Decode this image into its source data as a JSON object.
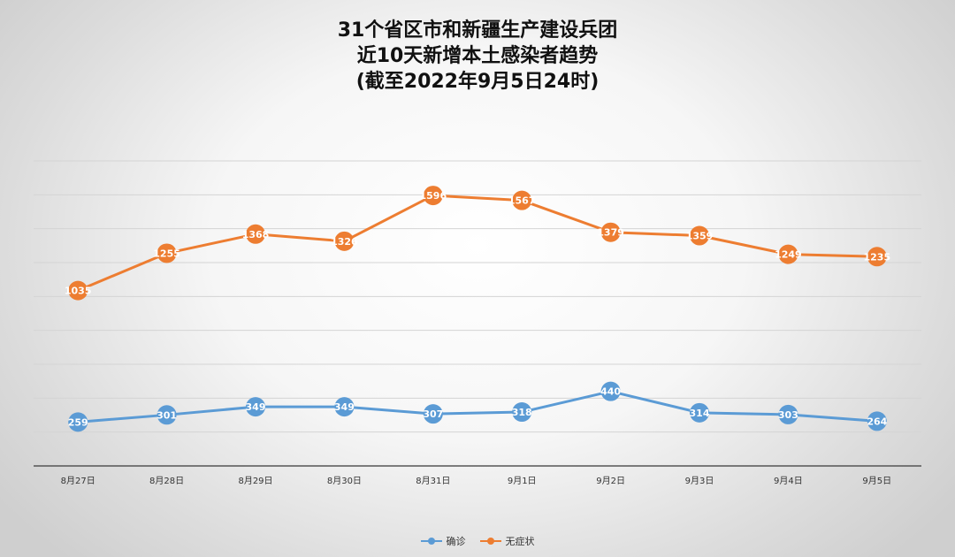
{
  "chart_data": {
    "type": "line",
    "title_lines": [
      "31个省区市和新疆生产建设兵团",
      "近10天新增本土感染者趋势",
      "(截至2022年9月5日24时)"
    ],
    "categories": [
      "8月27日",
      "8月28日",
      "8月29日",
      "8月30日",
      "8月31日",
      "9月1日",
      "9月2日",
      "9月3日",
      "9月4日",
      "9月5日"
    ],
    "series": [
      {
        "name": "确诊",
        "color": "#5b9bd5",
        "values": [
          259,
          301,
          349,
          349,
          307,
          318,
          440,
          314,
          303,
          264
        ]
      },
      {
        "name": "无症状",
        "color": "#ed7d31",
        "values": [
          1035,
          1255,
          1368,
          1326,
          1596,
          1567,
          1379,
          1359,
          1249,
          1235
        ]
      }
    ],
    "ylim": [
      0,
      1800
    ],
    "grid": true,
    "legend": "bottom",
    "data_labels": true
  }
}
